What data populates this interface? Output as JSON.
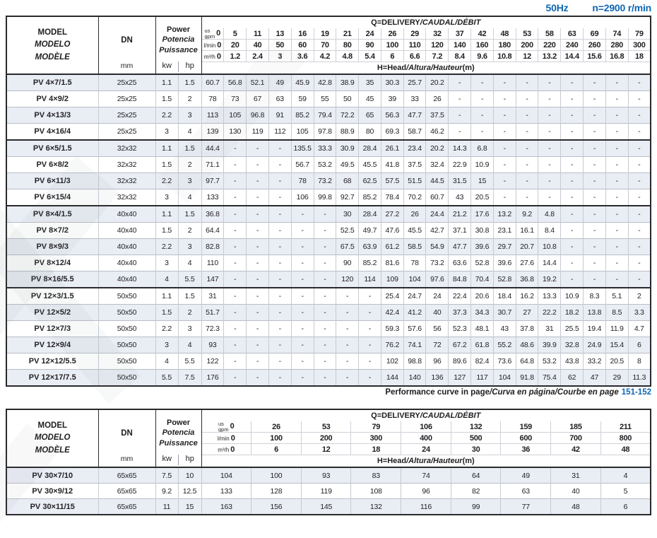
{
  "page": {
    "frequency": "50Hz",
    "speed": "n=2900 r/min"
  },
  "colors": {
    "accent_blue": "#1066b2",
    "stripe": "#e9edf4",
    "border_dark": "#2a2a2e"
  },
  "labels": {
    "model": [
      "MODEL",
      "MODELO",
      "MODÈLE"
    ],
    "dn": "DN",
    "mm": "mm",
    "power": [
      "Power",
      "Potencia",
      "Puissance"
    ],
    "kw": "kw",
    "hp": "hp",
    "q_title_en": "Q=DELIVERY",
    "q_title_i18n": "/CAUDAL/DÉBIT",
    "h_title_en": "H=Head",
    "h_title_i18n": "/Altura/Hauteur",
    "h_unit": "(m)",
    "unit_us": "us",
    "unit_gpm": "gpm",
    "unit_lmin": "l/min",
    "unit_m3h": "m³/h"
  },
  "note": {
    "en": "Performance curve in page",
    "i18n": "/Curva en página/Courbe en page",
    "pages": "151-152"
  },
  "table1": {
    "gpm": [
      "0",
      "5",
      "11",
      "13",
      "16",
      "19",
      "21",
      "24",
      "26",
      "29",
      "32",
      "37",
      "42",
      "48",
      "53",
      "58",
      "63",
      "69",
      "74",
      "79"
    ],
    "lmin": [
      "0",
      "20",
      "40",
      "50",
      "60",
      "70",
      "80",
      "90",
      "100",
      "110",
      "120",
      "140",
      "160",
      "180",
      "200",
      "220",
      "240",
      "260",
      "280",
      "300"
    ],
    "m3h": [
      "0",
      "1.2",
      "2.4",
      "3",
      "3.6",
      "4.2",
      "4.8",
      "5.4",
      "6",
      "6.6",
      "7.2",
      "8.4",
      "9.6",
      "10.8",
      "12",
      "13.2",
      "14.4",
      "15.6",
      "16.8",
      "18"
    ],
    "rows": [
      {
        "model": "PV 4×7/1.5",
        "dn": "25x25",
        "kw": "1.1",
        "hp": "1.5",
        "group_start": true,
        "values": [
          "60.7",
          "56.8",
          "52.1",
          "49",
          "45.9",
          "42.8",
          "38.9",
          "35",
          "30.3",
          "25.7",
          "20.2",
          "-",
          "-",
          "-",
          "-",
          "-",
          "-",
          "-",
          "-",
          "-"
        ]
      },
      {
        "model": "PV 4×9/2",
        "dn": "25x25",
        "kw": "1.5",
        "hp": "2",
        "group_start": false,
        "values": [
          "78",
          "73",
          "67",
          "63",
          "59",
          "55",
          "50",
          "45",
          "39",
          "33",
          "26",
          "-",
          "-",
          "-",
          "-",
          "-",
          "-",
          "-",
          "-",
          "-"
        ]
      },
      {
        "model": "PV 4×13/3",
        "dn": "25x25",
        "kw": "2.2",
        "hp": "3",
        "group_start": false,
        "values": [
          "113",
          "105",
          "96.8",
          "91",
          "85.2",
          "79.4",
          "72.2",
          "65",
          "56.3",
          "47.7",
          "37.5",
          "-",
          "-",
          "-",
          "-",
          "-",
          "-",
          "-",
          "-",
          "-"
        ]
      },
      {
        "model": "PV 4×16/4",
        "dn": "25x25",
        "kw": "3",
        "hp": "4",
        "group_start": false,
        "values": [
          "139",
          "130",
          "119",
          "112",
          "105",
          "97.8",
          "88.9",
          "80",
          "69.3",
          "58.7",
          "46.2",
          "-",
          "-",
          "-",
          "-",
          "-",
          "-",
          "-",
          "-",
          "-"
        ]
      },
      {
        "model": "PV 6×5/1.5",
        "dn": "32x32",
        "kw": "1.1",
        "hp": "1.5",
        "group_start": true,
        "values": [
          "44.4",
          "-",
          "-",
          "-",
          "135.5",
          "33.3",
          "30.9",
          "28.4",
          "26.1",
          "23.4",
          "20.2",
          "14.3",
          "6.8",
          "-",
          "-",
          "-",
          "-",
          "-",
          "-",
          "-"
        ]
      },
      {
        "model": "PV 6×8/2",
        "dn": "32x32",
        "kw": "1.5",
        "hp": "2",
        "group_start": false,
        "values": [
          "71.1",
          "-",
          "-",
          "-",
          "56.7",
          "53.2",
          "49.5",
          "45.5",
          "41.8",
          "37.5",
          "32.4",
          "22.9",
          "10.9",
          "-",
          "-",
          "-",
          "-",
          "-",
          "-",
          "-"
        ]
      },
      {
        "model": "PV 6×11/3",
        "dn": "32x32",
        "kw": "2.2",
        "hp": "3",
        "group_start": false,
        "values": [
          "97.7",
          "-",
          "-",
          "-",
          "78",
          "73.2",
          "68",
          "62.5",
          "57.5",
          "51.5",
          "44.5",
          "31.5",
          "15",
          "-",
          "-",
          "-",
          "-",
          "-",
          "-",
          "-"
        ]
      },
      {
        "model": "PV 6×15/4",
        "dn": "32x32",
        "kw": "3",
        "hp": "4",
        "group_start": false,
        "values": [
          "133",
          "-",
          "-",
          "-",
          "106",
          "99.8",
          "92.7",
          "85.2",
          "78.4",
          "70.2",
          "60.7",
          "43",
          "20.5",
          "-",
          "-",
          "-",
          "-",
          "-",
          "-",
          "-"
        ]
      },
      {
        "model": "PV 8×4/1.5",
        "dn": "40x40",
        "kw": "1.1",
        "hp": "1.5",
        "group_start": true,
        "values": [
          "36.8",
          "-",
          "-",
          "-",
          "-",
          "-",
          "30",
          "28.4",
          "27.2",
          "26",
          "24.4",
          "21.2",
          "17.6",
          "13.2",
          "9.2",
          "4.8",
          "-",
          "-",
          "-",
          "-"
        ]
      },
      {
        "model": "PV 8×7/2",
        "dn": "40x40",
        "kw": "1.5",
        "hp": "2",
        "group_start": false,
        "values": [
          "64.4",
          "-",
          "-",
          "-",
          "-",
          "-",
          "52.5",
          "49.7",
          "47.6",
          "45.5",
          "42.7",
          "37.1",
          "30.8",
          "23.1",
          "16.1",
          "8.4",
          "-",
          "-",
          "-",
          "-"
        ]
      },
      {
        "model": "PV 8×9/3",
        "dn": "40x40",
        "kw": "2.2",
        "hp": "3",
        "group_start": false,
        "values": [
          "82.8",
          "-",
          "-",
          "-",
          "-",
          "-",
          "67.5",
          "63.9",
          "61.2",
          "58.5",
          "54.9",
          "47.7",
          "39.6",
          "29.7",
          "20.7",
          "10.8",
          "-",
          "-",
          "-",
          "-"
        ]
      },
      {
        "model": "PV 8×12/4",
        "dn": "40x40",
        "kw": "3",
        "hp": "4",
        "group_start": false,
        "values": [
          "110",
          "-",
          "-",
          "-",
          "-",
          "-",
          "90",
          "85.2",
          "81.6",
          "78",
          "73.2",
          "63.6",
          "52.8",
          "39.6",
          "27.6",
          "14.4",
          "-",
          "-",
          "-",
          "-"
        ]
      },
      {
        "model": "PV 8×16/5.5",
        "dn": "40x40",
        "kw": "4",
        "hp": "5.5",
        "group_start": false,
        "values": [
          "147",
          "-",
          "-",
          "-",
          "-",
          "-",
          "120",
          "114",
          "109",
          "104",
          "97.6",
          "84.8",
          "70.4",
          "52.8",
          "36.8",
          "19.2",
          "-",
          "-",
          "-",
          "-"
        ]
      },
      {
        "model": "PV 12×3/1.5",
        "dn": "50x50",
        "kw": "1.1",
        "hp": "1.5",
        "group_start": true,
        "values": [
          "31",
          "-",
          "-",
          "-",
          "-",
          "-",
          "-",
          "-",
          "25.4",
          "24.7",
          "24",
          "22.4",
          "20.6",
          "18.4",
          "16.2",
          "13.3",
          "10.9",
          "8.3",
          "5.1",
          "2"
        ]
      },
      {
        "model": "PV 12×5/2",
        "dn": "50x50",
        "kw": "1.5",
        "hp": "2",
        "group_start": false,
        "values": [
          "51.7",
          "-",
          "-",
          "-",
          "-",
          "-",
          "-",
          "-",
          "42.4",
          "41.2",
          "40",
          "37.3",
          "34.3",
          "30.7",
          "27",
          "22.2",
          "18.2",
          "13.8",
          "8.5",
          "3.3"
        ]
      },
      {
        "model": "PV 12×7/3",
        "dn": "50x50",
        "kw": "2.2",
        "hp": "3",
        "group_start": false,
        "values": [
          "72.3",
          "-",
          "-",
          "-",
          "-",
          "-",
          "-",
          "-",
          "59.3",
          "57.6",
          "56",
          "52.3",
          "48.1",
          "43",
          "37.8",
          "31",
          "25.5",
          "19.4",
          "11.9",
          "4.7"
        ]
      },
      {
        "model": "PV 12×9/4",
        "dn": "50x50",
        "kw": "3",
        "hp": "4",
        "group_start": false,
        "values": [
          "93",
          "-",
          "-",
          "-",
          "-",
          "-",
          "-",
          "-",
          "76.2",
          "74.1",
          "72",
          "67.2",
          "61.8",
          "55.2",
          "48.6",
          "39.9",
          "32.8",
          "24.9",
          "15.4",
          "6"
        ]
      },
      {
        "model": "PV 12×12/5.5",
        "dn": "50x50",
        "kw": "4",
        "hp": "5.5",
        "group_start": false,
        "values": [
          "122",
          "-",
          "-",
          "-",
          "-",
          "-",
          "-",
          "-",
          "102",
          "98.8",
          "96",
          "89.6",
          "82.4",
          "73.6",
          "64.8",
          "53.2",
          "43.8",
          "33.2",
          "20.5",
          "8"
        ]
      },
      {
        "model": "PV 12×17/7.5",
        "dn": "50x50",
        "kw": "5.5",
        "hp": "7.5",
        "group_start": false,
        "values": [
          "176",
          "-",
          "-",
          "-",
          "-",
          "-",
          "-",
          "-",
          "144",
          "140",
          "136",
          "127",
          "117",
          "104",
          "91.8",
          "75.4",
          "62",
          "47",
          "29",
          "11.3"
        ]
      }
    ]
  },
  "table2": {
    "gpm": [
      "0",
      "26",
      "53",
      "79",
      "106",
      "132",
      "159",
      "185",
      "211"
    ],
    "lmin": [
      "0",
      "100",
      "200",
      "300",
      "400",
      "500",
      "600",
      "700",
      "800"
    ],
    "m3h": [
      "0",
      "6",
      "12",
      "18",
      "24",
      "30",
      "36",
      "42",
      "48"
    ],
    "rows": [
      {
        "model": "PV 30×7/10",
        "dn": "65x65",
        "kw": "7.5",
        "hp": "10",
        "group_start": true,
        "values": [
          "104",
          "100",
          "93",
          "83",
          "74",
          "64",
          "49",
          "31",
          "4"
        ]
      },
      {
        "model": "PV 30×9/12",
        "dn": "65x65",
        "kw": "9.2",
        "hp": "12.5",
        "group_start": false,
        "values": [
          "133",
          "128",
          "119",
          "108",
          "96",
          "82",
          "63",
          "40",
          "5"
        ]
      },
      {
        "model": "PV 30×11/15",
        "dn": "65x65",
        "kw": "11",
        "hp": "15",
        "group_start": false,
        "values": [
          "163",
          "156",
          "145",
          "132",
          "116",
          "99",
          "77",
          "48",
          "6"
        ]
      }
    ]
  }
}
